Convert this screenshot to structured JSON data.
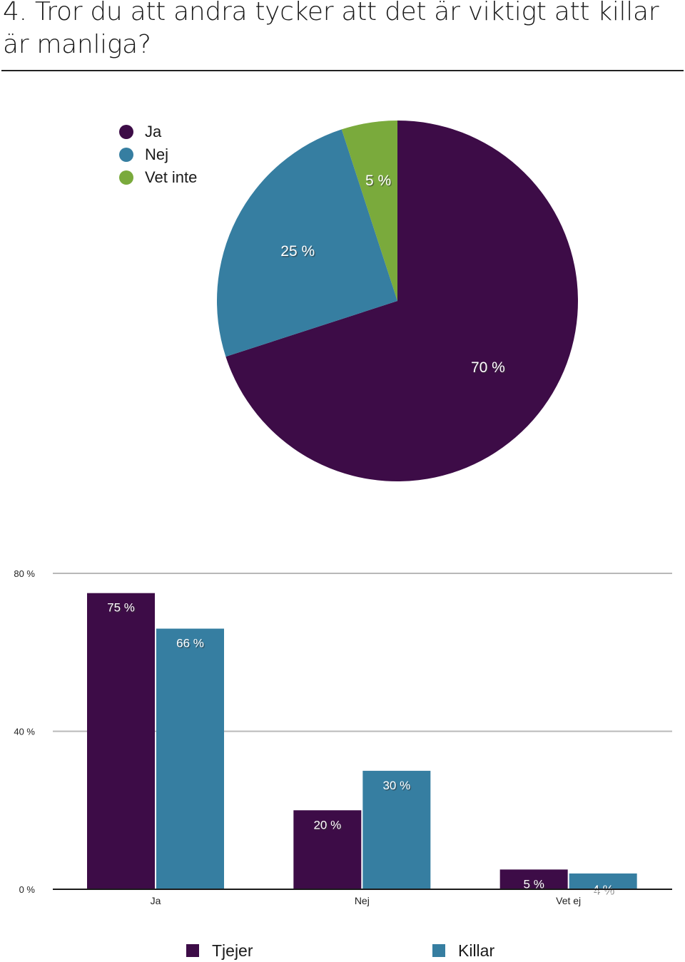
{
  "question": "4. Tror du att andra tycker att det är viktigt att killar är manliga?",
  "chart_data": [
    {
      "type": "pie",
      "slices": [
        {
          "label": "Ja",
          "value": 70,
          "display": "70 %",
          "color": "#3d0c47"
        },
        {
          "label": "Nej",
          "value": 25,
          "display": "25 %",
          "color": "#367ea1"
        },
        {
          "label": "Vet inte",
          "value": 5,
          "display": "5 %",
          "color": "#7aaa3c"
        }
      ],
      "legend_position": "top-left"
    },
    {
      "type": "bar",
      "categories": [
        "Ja",
        "Nej",
        "Vet ej"
      ],
      "series": [
        {
          "name": "Tjejer",
          "values": [
            75,
            20,
            5
          ],
          "labels": [
            "75 %",
            "20 %",
            "5 %"
          ],
          "color": "#3d0c47"
        },
        {
          "name": "Killar",
          "values": [
            66,
            30,
            4
          ],
          "labels": [
            "66 %",
            "30 %",
            "4 %"
          ],
          "color": "#367ea1"
        }
      ],
      "ylim": [
        0,
        80
      ],
      "yticks": [
        0,
        40,
        80
      ],
      "ytick_labels": [
        "0 %",
        "40 %",
        "80 %"
      ],
      "grid": true,
      "legend_position": "bottom"
    }
  ]
}
